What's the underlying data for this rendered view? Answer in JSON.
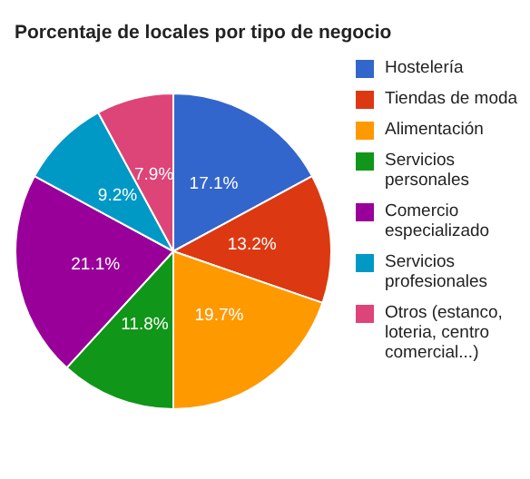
{
  "chart_data": {
    "type": "pie",
    "title": "Porcentaje de locales por tipo de negocio",
    "categories": [
      "Hostelería",
      "Tiendas de moda",
      "Alimentación",
      "Servicios personales",
      "Comercio especializado",
      "Servicios profesionales",
      "Otros (estanco, loteria, centro comercial...)"
    ],
    "values": [
      17.1,
      13.2,
      19.7,
      11.8,
      21.1,
      9.2,
      7.9
    ],
    "value_labels": [
      "17.1%",
      "13.2%",
      "19.7%",
      "11.8%",
      "21.1%",
      "9.2%",
      "7.9%"
    ],
    "colors": [
      "#3366cc",
      "#dc3912",
      "#ff9900",
      "#109618",
      "#990099",
      "#0099c6",
      "#dd4477"
    ],
    "legend": "right"
  }
}
